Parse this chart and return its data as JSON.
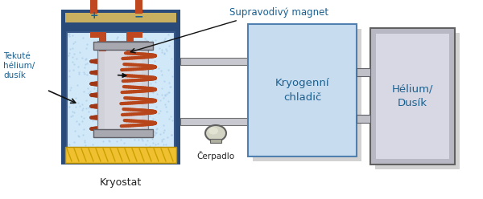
{
  "bg_color": "#ffffff",
  "label_kryostat": "Kryostat",
  "label_tekute": "Tekuté\nhélium/\ndusík",
  "label_supravodive": "Supravodivý magnet",
  "label_kryogenni": "Kryogenní\nchladič",
  "label_helium": "Hélium/\nDusík",
  "label_cerpadlo": "Čerpadlo",
  "label_plus": "+",
  "label_minus": "−",
  "color_dark_blue": "#2a4a7a",
  "color_mid_blue": "#4a6fa5",
  "color_light_blue_fill": "#ccdff5",
  "color_coil": "#b8451a",
  "color_gray_dark": "#505050",
  "color_yellow": "#f0c040",
  "color_text_blue": "#1a6090",
  "color_text_black": "#222222"
}
